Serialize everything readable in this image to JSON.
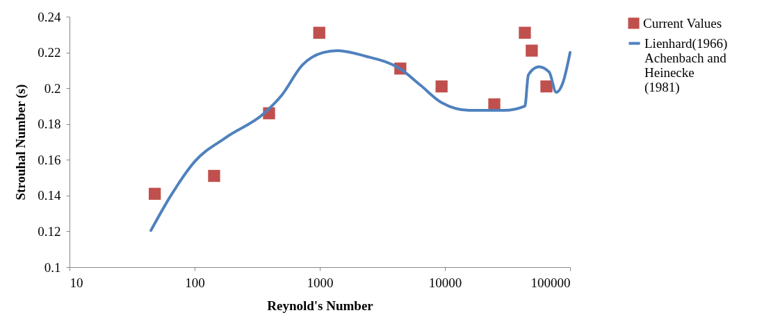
{
  "chart_data": {
    "type": "scatter",
    "xlabel": "Reynold's  Number",
    "ylabel": "Strouhal Number  (s)",
    "log": "x",
    "xlim": [
      10,
      100000
    ],
    "xticks": [
      10,
      100,
      1000,
      10000,
      100000
    ],
    "ylim": [
      0.1,
      0.24
    ],
    "yticks": [
      0.1,
      0.12,
      0.14,
      0.16,
      0.18,
      0.2,
      0.22,
      0.24
    ],
    "grid": false,
    "legend": "right",
    "series": [
      {
        "name": "Current Values",
        "marker": "square",
        "color": "#c0504d",
        "x": [
          48,
          143,
          393,
          990,
          4400,
          9400,
          24800,
          43500,
          49400,
          64700
        ],
        "values": [
          0.141,
          0.151,
          0.186,
          0.231,
          0.211,
          0.201,
          0.191,
          0.231,
          0.221,
          0.201
        ]
      },
      {
        "name": "Lienhard(1966) Achenbach and Heinecke (1981)",
        "type": "line",
        "color": "#4f81bd",
        "x": [
          44.7,
          64,
          100,
          178,
          359,
          495,
          726,
          1067,
          1377,
          2297,
          4355,
          6400,
          9380,
          15640,
          29650,
          43550,
          46400,
          56200,
          68100,
          77400,
          88000,
          100000
        ],
        "values": [
          0.1205,
          0.1396,
          0.159,
          0.1725,
          0.186,
          0.196,
          0.213,
          0.22,
          0.221,
          0.218,
          0.211,
          0.2016,
          0.192,
          0.1876,
          0.1876,
          0.19,
          0.2074,
          0.212,
          0.209,
          0.1977,
          0.2035,
          0.22
        ]
      }
    ]
  }
}
